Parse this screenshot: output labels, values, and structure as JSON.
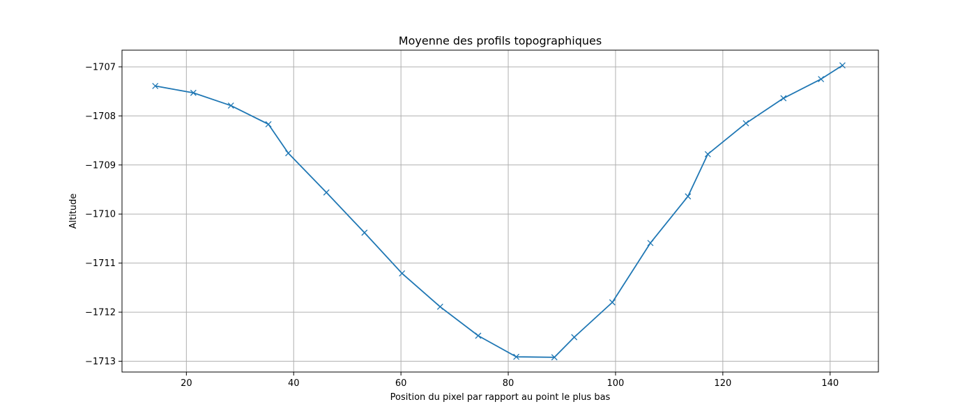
{
  "chart_data": {
    "type": "line",
    "title": "Moyenne des profils topographiques",
    "xlabel": "Position du pixel par rapport au point le plus bas",
    "ylabel": "Altitude",
    "xlim": [
      8,
      149
    ],
    "ylim": [
      -1713.22,
      -1706.66
    ],
    "xticks": [
      20,
      40,
      60,
      80,
      100,
      120,
      140
    ],
    "yticks": [
      -1713,
      -1712,
      -1711,
      -1710,
      -1709,
      -1708,
      -1707
    ],
    "xtick_labels": [
      "20",
      "40",
      "60",
      "80",
      "100",
      "120",
      "140"
    ],
    "ytick_labels": [
      "−1713",
      "−1712",
      "−1711",
      "−1710",
      "−1709",
      "−1708",
      "−1707"
    ],
    "grid": true,
    "marker": "x",
    "color": "#1f77b4",
    "series": [
      {
        "x": [
          14.2,
          21.3,
          28.3,
          35.3,
          39.0,
          46.1,
          53.2,
          60.2,
          67.3,
          74.4,
          81.5,
          88.6,
          92.3,
          99.4,
          106.5,
          113.5,
          117.2,
          124.3,
          131.3,
          138.3,
          142.3
        ],
        "y": [
          -1707.39,
          -1707.53,
          -1707.79,
          -1708.17,
          -1708.76,
          -1709.56,
          -1710.38,
          -1711.21,
          -1711.89,
          -1712.48,
          -1712.91,
          -1712.92,
          -1712.51,
          -1711.8,
          -1710.59,
          -1709.64,
          -1708.78,
          -1708.15,
          -1707.64,
          -1707.25,
          -1706.97
        ]
      }
    ]
  }
}
